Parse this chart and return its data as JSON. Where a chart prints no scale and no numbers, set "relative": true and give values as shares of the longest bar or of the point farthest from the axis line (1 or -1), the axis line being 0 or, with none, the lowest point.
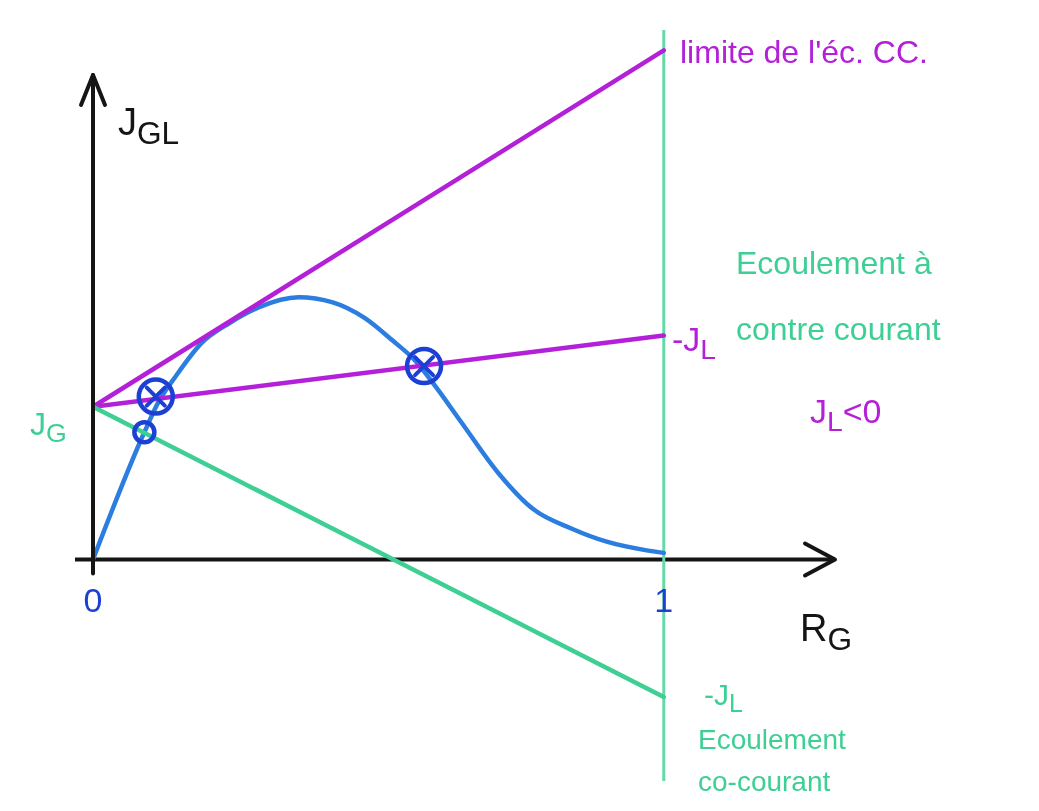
{
  "chart_data": {
    "type": "line",
    "relative": true,
    "xlabel": "R$_{G}$",
    "ylabel": "J$_{GL}$",
    "xlim": [
      0,
      1.3
    ],
    "xticks": [
      0,
      1
    ],
    "series": [
      {
        "color": "#2b7de0",
        "x": [
          0,
          0.09,
          0.115,
          0.145,
          0.19,
          0.24,
          0.29,
          0.36,
          0.42,
          0.475,
          0.525,
          0.565,
          0.6,
          0.645,
          0.71,
          0.77,
          0.84,
          0.9,
          0.97,
          1
        ],
        "values": [
          0,
          0.25,
          0.31,
          0.36,
          0.425,
          0.465,
          0.495,
          0.515,
          0.505,
          0.475,
          0.43,
          0.39,
          0.34,
          0.27,
          0.17,
          0.1,
          0.06,
          0.035,
          0.018,
          0.013
        ]
      },
      {
        "color": "#b320d8",
        "x": [
          0,
          1
        ],
        "values": [
          0.3,
          1
        ]
      },
      {
        "color": "#b320d8",
        "x": [
          0,
          1
        ],
        "values": [
          0.3,
          0.44
        ]
      },
      {
        "color": "#3ecf94",
        "x": [
          0,
          1
        ],
        "values": [
          0.3,
          -0.27
        ]
      },
      {
        "type": "scatter",
        "marker": "circle",
        "color": "#1c3fd4",
        "x": [
          0.11,
          0.58
        ],
        "values": [
          0.32,
          0.38
        ]
      },
      {
        "type": "scatter",
        "marker": "cross",
        "color": "#1c3fd4",
        "x": [
          0.11,
          0.58
        ],
        "values": [
          0.32,
          0.38
        ]
      },
      {
        "type": "scatter",
        "marker": "circle",
        "color": "#1c3fd4",
        "x": [
          0.09
        ],
        "values": [
          0.25
        ]
      }
    ],
    "ref_lines": [
      {
        "axis": "x",
        "value": 1,
        "color": "#66d9ab"
      }
    ],
    "annotations": [
      "limite de l'éc. CC.",
      "-J$_{L}$",
      "Ecoulement à\ncontre courant",
      "J$_{L}$<0",
      "J$_{G}$",
      "-J$_{L}$",
      "Ecoulement\nco-courant"
    ]
  }
}
